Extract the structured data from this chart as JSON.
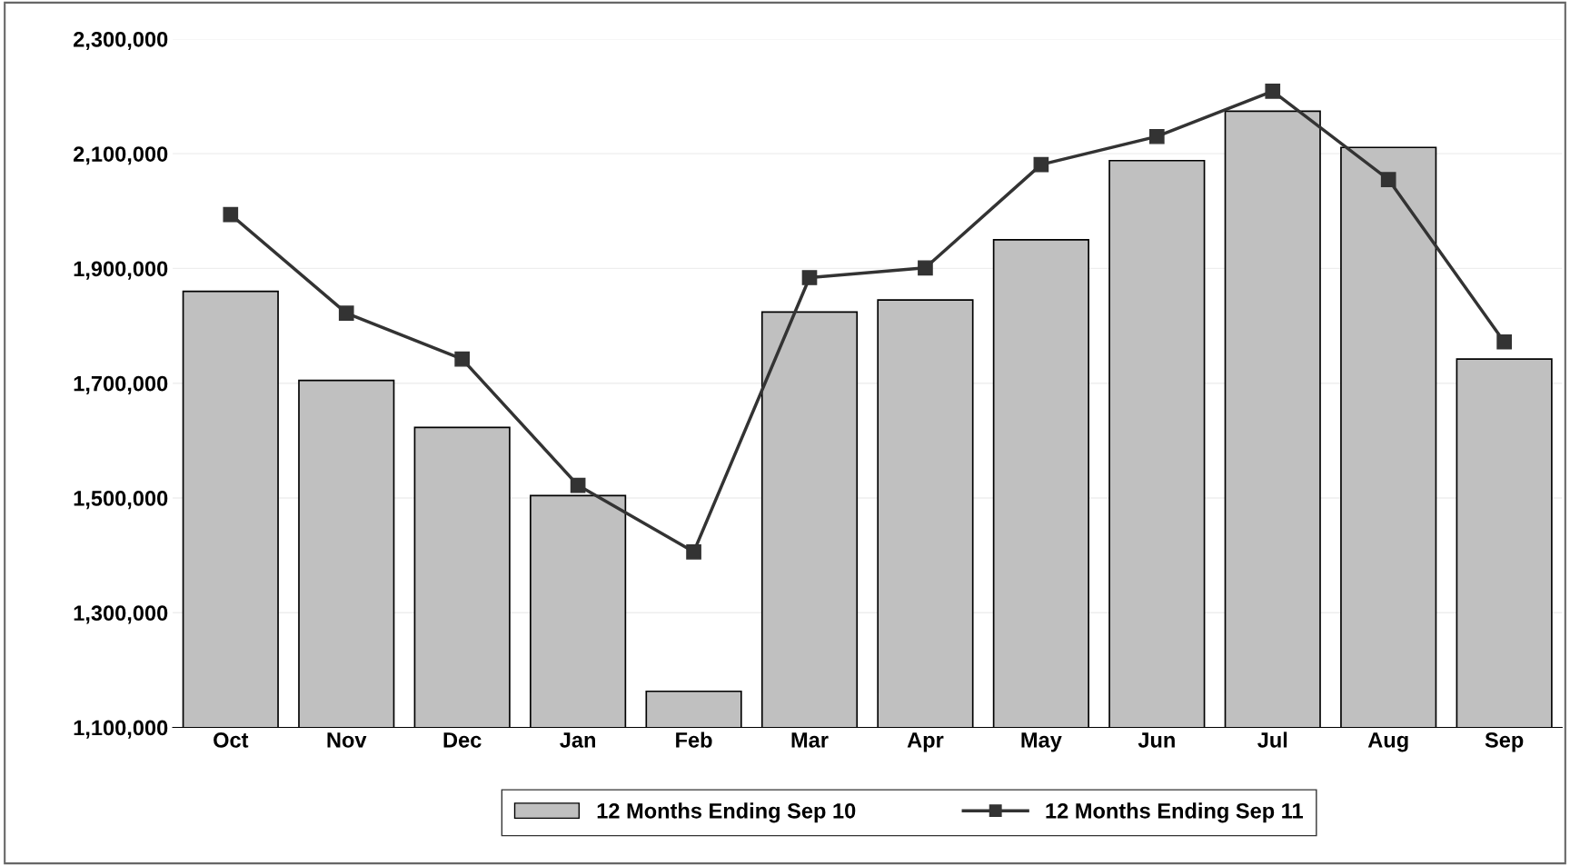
{
  "chart_data": {
    "type": "bar",
    "categories": [
      "Oct",
      "Nov",
      "Dec",
      "Jan",
      "Feb",
      "Mar",
      "Apr",
      "May",
      "Jun",
      "Jul",
      "Aug",
      "Sep"
    ],
    "series": [
      {
        "name": "12 Months Ending Sep 10",
        "color": "#c0c0c0",
        "values": [
          1860000,
          1705000,
          1623000,
          1504000,
          1163000,
          1824000,
          1845000,
          1950000,
          2088000,
          2174000,
          2111000,
          1742000
        ]
      },
      {
        "name": "12 Months Ending Sep 11",
        "type": "line",
        "color": "#333333",
        "marker": "square",
        "values": [
          1994000,
          1822000,
          1742000,
          1522000,
          1406000,
          1884000,
          1901000,
          2081000,
          2130000,
          2209000,
          2055000,
          1772000
        ]
      }
    ],
    "ylim": [
      1100000,
      2300000
    ],
    "yticks": [
      {
        "value": 1100000,
        "label": "1,100,000"
      },
      {
        "value": 1300000,
        "label": "1,300,000"
      },
      {
        "value": 1500000,
        "label": "1,500,000"
      },
      {
        "value": 1700000,
        "label": "1,700,000"
      },
      {
        "value": 1900000,
        "label": "1,900,000"
      },
      {
        "value": 2100000,
        "label": "2,100,000"
      },
      {
        "value": 2300000,
        "label": "2,300,000"
      }
    ],
    "grid": "y",
    "legend": "bottom"
  }
}
